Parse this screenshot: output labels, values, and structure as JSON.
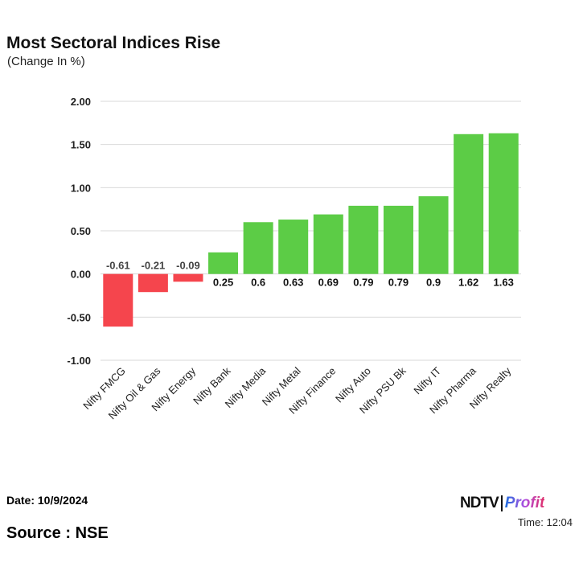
{
  "header": {
    "title": "Most Sectoral Indices Rise",
    "subtitle": "(Change In %)"
  },
  "footer": {
    "date": "Date: 10/9/2024",
    "time": "Time: 12:04",
    "source": "Source : NSE",
    "logo_text": "NDTV Profit"
  },
  "colors": {
    "positive": "#5ccc46",
    "negative": "#f5454d"
  },
  "chart_data": {
    "type": "bar",
    "title": "Most Sectoral Indices Rise",
    "subtitle": "(Change In %)",
    "categories": [
      "Nifty FMCG",
      "Nifty Oil & Gas",
      "Nifty Energy",
      "Nifty Bank",
      "Nifty Media",
      "Nifty Metal",
      "Nifty Finance",
      "Nifty Auto",
      "Nifty PSU Bk",
      "Nifty IT",
      "Nifty Pharma",
      "Nifty Realty"
    ],
    "values": [
      -0.61,
      -0.21,
      -0.09,
      0.25,
      0.6,
      0.63,
      0.69,
      0.79,
      0.79,
      0.9,
      1.62,
      1.63
    ],
    "data_labels": [
      "-0.61",
      "-0.21",
      "-0.09",
      "0.25",
      "0.6",
      "0.63",
      "0.69",
      "0.79",
      "0.79",
      "0.9",
      "1.62",
      "1.63"
    ],
    "yticks": [
      "2.00",
      "1.50",
      "1.00",
      "0.50",
      "0.00",
      "-0.50",
      "-1.00"
    ],
    "ylim": [
      -1,
      2
    ],
    "grid": true,
    "legend": "none"
  }
}
